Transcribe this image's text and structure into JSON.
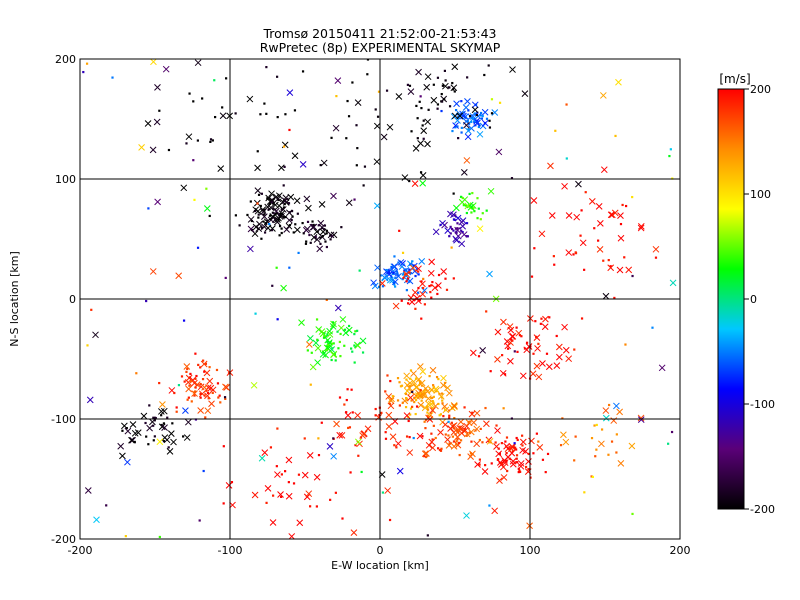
{
  "chart_data": {
    "type": "scatter",
    "title": "Tromsø 20150411 21:52:00-21:53:43",
    "subtitle": "RwPretec (8p) EXPERIMENTAL SKYMAP",
    "xlabel": "E-W location [km]",
    "ylabel": "N-S location [km]",
    "xlim": [
      -200,
      200
    ],
    "ylim": [
      -200,
      200
    ],
    "xticks": [
      -200,
      -100,
      0,
      100,
      200
    ],
    "yticks": [
      -200,
      -100,
      0,
      100,
      200
    ],
    "grid": true,
    "markers": [
      "x",
      "dot"
    ],
    "colorbar": {
      "label": "[m/s]",
      "min": -200,
      "max": 200,
      "ticks": [
        -200,
        -100,
        0,
        100,
        200
      ],
      "colormap": [
        "#000000",
        "#5a0078",
        "#0000ff",
        "#00c8ff",
        "#00ff00",
        "#ffff00",
        "#ff8c00",
        "#ff0000"
      ]
    },
    "clusters": [
      {
        "x": 60,
        "y": 150,
        "spread": 12,
        "velocity": -60,
        "count": 60
      },
      {
        "x": -70,
        "y": 70,
        "spread": 15,
        "velocity": -200,
        "count": 110
      },
      {
        "x": -40,
        "y": 55,
        "spread": 10,
        "velocity": -190,
        "count": 40
      },
      {
        "x": 10,
        "y": 20,
        "spread": 12,
        "velocity": -60,
        "count": 70
      },
      {
        "x": 50,
        "y": 60,
        "spread": 10,
        "velocity": -120,
        "count": 35
      },
      {
        "x": 60,
        "y": 80,
        "spread": 10,
        "velocity": 40,
        "count": 25
      },
      {
        "x": 40,
        "y": 170,
        "spread": 25,
        "velocity": -200,
        "count": 45
      },
      {
        "x": 30,
        "y": -80,
        "spread": 15,
        "velocity": 130,
        "count": 110
      },
      {
        "x": 50,
        "y": -110,
        "spread": 18,
        "velocity": 170,
        "count": 90
      },
      {
        "x": 90,
        "y": -130,
        "spread": 15,
        "velocity": 200,
        "count": 75
      },
      {
        "x": -30,
        "y": -35,
        "spread": 15,
        "velocity": 30,
        "count": 70
      },
      {
        "x": -120,
        "y": -75,
        "spread": 18,
        "velocity": 180,
        "count": 70
      },
      {
        "x": -150,
        "y": -110,
        "spread": 20,
        "velocity": -200,
        "count": 45
      },
      {
        "x": 0,
        "y": -100,
        "spread": 30,
        "velocity": 190,
        "count": 60
      },
      {
        "x": 100,
        "y": -40,
        "spread": 25,
        "velocity": 200,
        "count": 60
      },
      {
        "x": 30,
        "y": 10,
        "spread": 20,
        "velocity": 200,
        "count": 40
      },
      {
        "x": 0,
        "y": 140,
        "spread": 60,
        "velocity": -200,
        "count": 50
      },
      {
        "x": -100,
        "y": 150,
        "spread": 50,
        "velocity": -200,
        "count": 40
      },
      {
        "x": 140,
        "y": 60,
        "spread": 40,
        "velocity": 200,
        "count": 45
      },
      {
        "x": 150,
        "y": -120,
        "spread": 30,
        "velocity": 150,
        "count": 25
      },
      {
        "x": -60,
        "y": -150,
        "spread": 40,
        "velocity": 200,
        "count": 40
      },
      {
        "x": 0,
        "y": 0,
        "spread": 160,
        "velocity": null,
        "count": 140
      }
    ]
  }
}
